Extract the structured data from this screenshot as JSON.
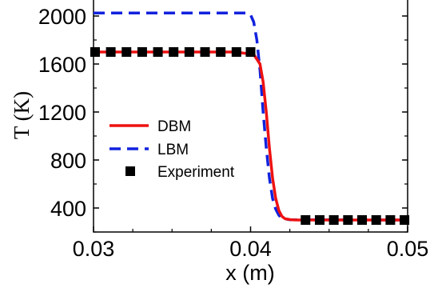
{
  "chart_data": {
    "type": "line",
    "xlabel": "x (m)",
    "ylabel": "T (K)",
    "xlim": [
      0.03,
      0.05
    ],
    "ylim": [
      200,
      2200
    ],
    "xticks": [
      0.03,
      0.04,
      0.05
    ],
    "xtick_labels": [
      "0.03",
      "0.04",
      "0.05"
    ],
    "yticks": [
      400,
      800,
      1200,
      1600,
      2000
    ],
    "ytick_labels": [
      "400",
      "800",
      "1200",
      "1600",
      "2000"
    ],
    "legend_position": "center-left",
    "grid": false,
    "series": [
      {
        "name": "DBM",
        "style": "solid",
        "color": "#ee1111",
        "x": [
          0.03,
          0.039,
          0.0402,
          0.0406,
          0.0408,
          0.041,
          0.0412,
          0.0414,
          0.0416,
          0.0418,
          0.042,
          0.0422,
          0.0426,
          0.043,
          0.05
        ],
        "y": [
          1700,
          1700,
          1680,
          1600,
          1450,
          1200,
          900,
          650,
          480,
          380,
          330,
          310,
          302,
          300,
          300
        ]
      },
      {
        "name": "LBM",
        "style": "dashed",
        "color": "#1122dd",
        "x": [
          0.03,
          0.0398,
          0.04,
          0.0402,
          0.0404,
          0.0406,
          0.0408,
          0.041,
          0.0412,
          0.0414,
          0.0416,
          0.0418,
          0.042,
          0.0425,
          0.05
        ],
        "y": [
          2025,
          2025,
          2010,
          1950,
          1800,
          1550,
          1200,
          900,
          650,
          480,
          390,
          340,
          315,
          302,
          300
        ]
      },
      {
        "name": "Experiment",
        "style": "marker",
        "color": "#000000",
        "x": [
          0.0301,
          0.0311,
          0.0321,
          0.0331,
          0.0341,
          0.0351,
          0.0361,
          0.0371,
          0.0381,
          0.0391,
          0.04,
          0.0435,
          0.0444,
          0.0453,
          0.0462,
          0.0471,
          0.048,
          0.0489,
          0.0498
        ],
        "y": [
          1700,
          1700,
          1700,
          1700,
          1700,
          1700,
          1700,
          1700,
          1700,
          1700,
          1700,
          300,
          300,
          300,
          300,
          300,
          300,
          300,
          300
        ]
      }
    ]
  }
}
